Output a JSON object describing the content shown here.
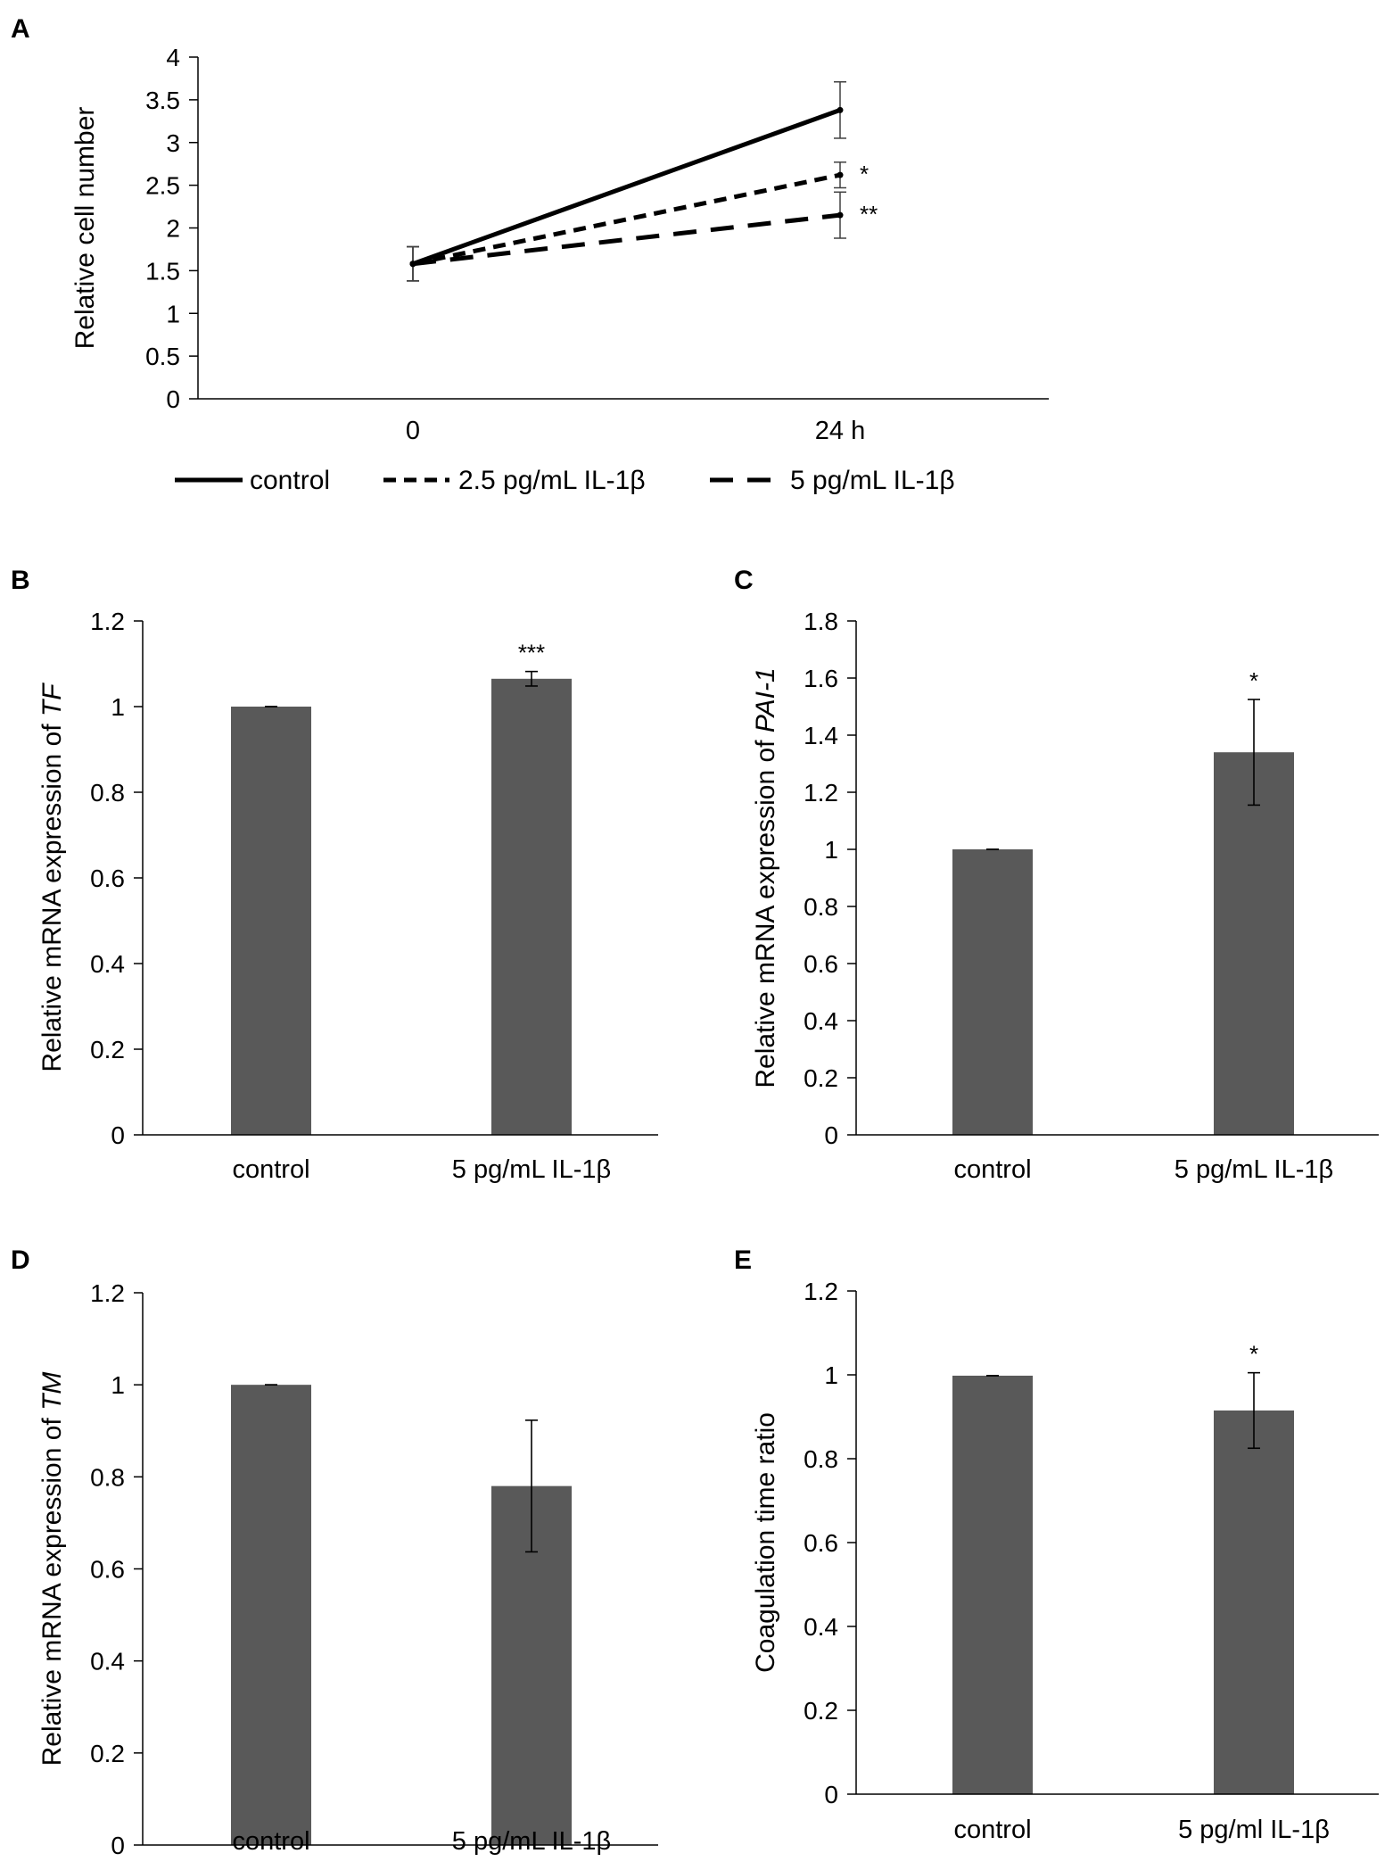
{
  "chart_data": [
    {
      "id": "A",
      "type": "line",
      "panel_label": "A",
      "ylabel": "Relative cell number",
      "xlabel": "",
      "x": [
        "0",
        "24 h"
      ],
      "ylim": [
        0,
        4
      ],
      "yticks": [
        "0",
        "0.5",
        "1",
        "1.5",
        "2",
        "2.5",
        "3",
        "3.5",
        "4"
      ],
      "series": [
        {
          "name": "control",
          "style": "solid",
          "values": [
            1.58,
            3.38
          ],
          "errors": [
            0.2,
            0.33
          ],
          "annotation": ""
        },
        {
          "name": "2.5 pg/mL IL-1β",
          "style": "short-dash",
          "values": [
            1.58,
            2.62
          ],
          "errors": [
            0.2,
            0.15
          ],
          "annotation": "*"
        },
        {
          "name": "5 pg/mL IL-1β",
          "style": "long-dash",
          "values": [
            1.58,
            2.15
          ],
          "errors": [
            0.2,
            0.27
          ],
          "annotation": "**"
        }
      ]
    },
    {
      "id": "B",
      "type": "bar",
      "panel_label": "B",
      "ylabel_prefix": "Relative mRNA expression of ",
      "ylabel_gene": "TF",
      "categories": [
        "control",
        "5 pg/mL IL-1β"
      ],
      "values": [
        1.0,
        1.065
      ],
      "errors": [
        0.0,
        0.017
      ],
      "annotations": [
        "",
        "***"
      ],
      "ylim": [
        0,
        1.2
      ],
      "yticks": [
        "0",
        "0.2",
        "0.4",
        "0.6",
        "0.8",
        "1",
        "1.2"
      ]
    },
    {
      "id": "C",
      "type": "bar",
      "panel_label": "C",
      "ylabel_prefix": "Relative mRNA expression of ",
      "ylabel_gene": "PAI-1",
      "categories": [
        "control",
        "5 pg/mL IL-1β"
      ],
      "values": [
        1.0,
        1.34
      ],
      "errors": [
        0.0,
        0.185
      ],
      "annotations": [
        "",
        "*"
      ],
      "ylim": [
        0,
        1.8
      ],
      "yticks": [
        "0",
        "0.2",
        "0.4",
        "0.6",
        "0.8",
        "1",
        "1.2",
        "1.4",
        "1.6",
        "1.8"
      ]
    },
    {
      "id": "D",
      "type": "bar",
      "panel_label": "D",
      "ylabel_prefix": "Relative mRNA expression of ",
      "ylabel_gene": "TM",
      "categories": [
        "control",
        "5 pg/mL IL-1β"
      ],
      "values": [
        1.0,
        0.78
      ],
      "errors": [
        0.0,
        0.143
      ],
      "annotations": [
        "",
        ""
      ],
      "ylim": [
        0,
        1.2
      ],
      "yticks": [
        "0",
        "0.2",
        "0.4",
        "0.6",
        "0.8",
        "1",
        "1.2"
      ]
    },
    {
      "id": "E",
      "type": "bar",
      "panel_label": "E",
      "ylabel_prefix": "Coagulation time ratio",
      "ylabel_gene": "",
      "categories": [
        "control",
        "5 pg/ml IL-1β"
      ],
      "values": [
        0.998,
        0.915
      ],
      "errors": [
        0.0,
        0.09
      ],
      "annotations": [
        "",
        "*"
      ],
      "ylim": [
        0,
        1.2
      ],
      "yticks": [
        "0",
        "0.2",
        "0.4",
        "0.6",
        "0.8",
        "1",
        "1.2"
      ]
    }
  ],
  "colors": {
    "bar": "#595959",
    "axis": "#000000",
    "line": "#000000",
    "error": "#404040"
  }
}
